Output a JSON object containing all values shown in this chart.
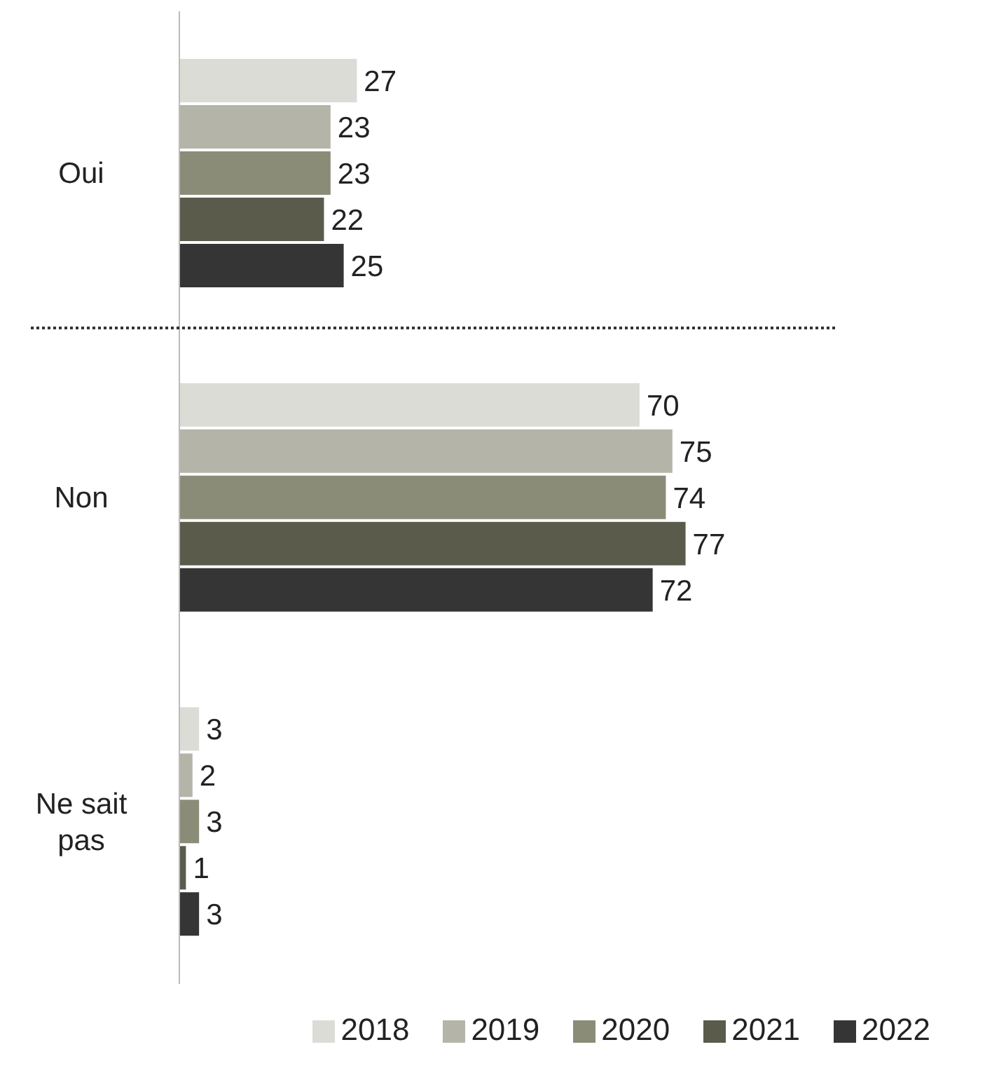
{
  "chart_data": {
    "type": "bar",
    "orientation": "horizontal",
    "categories": [
      "Oui",
      "Non",
      "Ne sait pas"
    ],
    "series": [
      {
        "name": "2018",
        "color": "#dcdcd6",
        "values": [
          27,
          70,
          3
        ]
      },
      {
        "name": "2019",
        "color": "#b4b5a8",
        "values": [
          23,
          75,
          2
        ]
      },
      {
        "name": "2020",
        "color": "#8b8c78",
        "values": [
          23,
          74,
          3
        ]
      },
      {
        "name": "2021",
        "color": "#5a5b4b",
        "values": [
          22,
          77,
          1
        ]
      },
      {
        "name": "2022",
        "color": "#353535",
        "values": [
          25,
          72,
          3
        ]
      }
    ],
    "data_labels": true,
    "legend": "bottom"
  }
}
